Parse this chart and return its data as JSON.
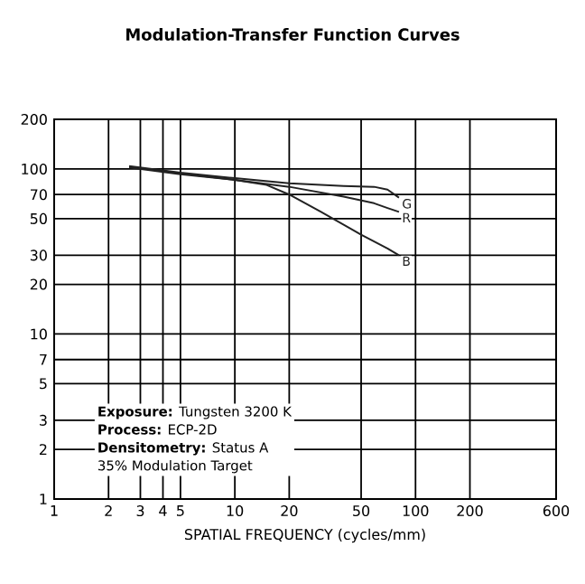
{
  "chart_data": {
    "type": "line",
    "title": "Modulation-Transfer Function Curves",
    "xlabel": "SPATIAL FREQUENCY (cycles/mm)",
    "log": "xy",
    "grid": true,
    "marker": "none",
    "line_style": "solid",
    "xlim": [
      1,
      600
    ],
    "xticks": [
      1,
      2,
      3,
      4,
      5,
      10,
      20,
      50,
      100,
      200,
      600
    ],
    "ylim": [
      1,
      200
    ],
    "yticks": [
      1,
      2,
      3,
      5,
      7,
      10,
      20,
      30,
      50,
      70,
      100,
      200
    ],
    "annotations": [
      "**Exposure:** Tungsten 3200 K",
      "**Process:** ECP-2D",
      "**Densitometry:** Status A",
      "35% Modulation Target"
    ],
    "series": [
      {
        "name": "G",
        "color": "#222222",
        "x": [
          2.6,
          5,
          10,
          20,
          40,
          59,
          70,
          81
        ],
        "values": [
          104,
          95,
          88,
          82,
          79,
          78,
          75,
          67
        ]
      },
      {
        "name": "R",
        "color": "#222222",
        "x": [
          2.6,
          5,
          10,
          20,
          40,
          59,
          70,
          81
        ],
        "values": [
          102,
          93,
          86,
          78,
          68,
          62,
          58,
          55
        ]
      },
      {
        "name": "B",
        "color": "#222222",
        "x": [
          2.6,
          5,
          10,
          15,
          20,
          30,
          50,
          70,
          81
        ],
        "values": [
          103,
          94,
          86,
          80,
          70,
          55,
          40,
          33,
          30
        ]
      }
    ]
  }
}
